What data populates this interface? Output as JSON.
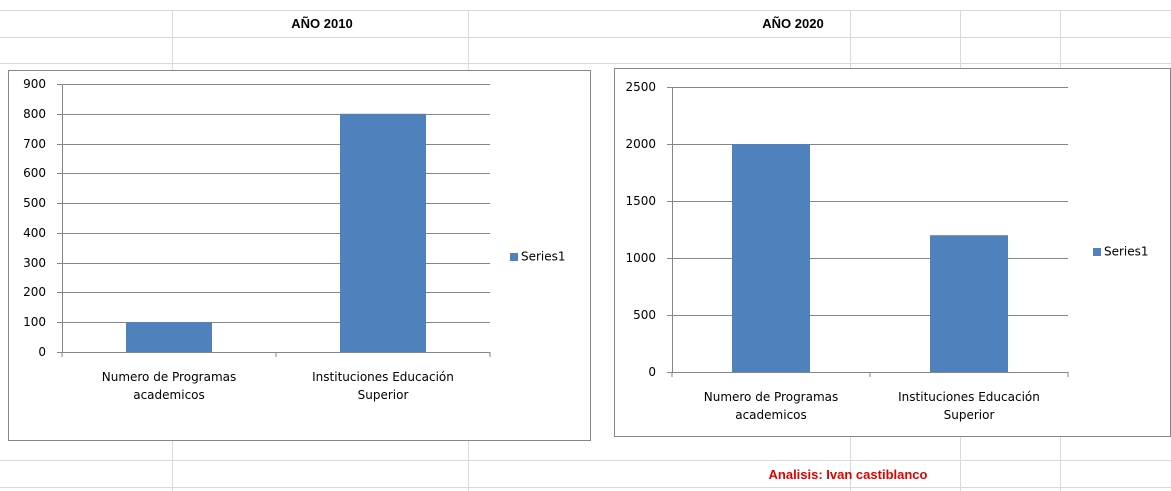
{
  "headers": [
    "AÑO 2010",
    "AÑO 2020"
  ],
  "footer": "Analisis: Ivan castiblanco",
  "chart_data": [
    {
      "type": "bar",
      "categories": [
        "Numero de Programas academicos",
        "Instituciones Educación Superior"
      ],
      "series": [
        {
          "name": "Series1",
          "color": "#4f81bd",
          "values": [
            100,
            800
          ]
        }
      ],
      "ylim": [
        0,
        900
      ],
      "yticks": [
        0,
        100,
        200,
        300,
        400,
        500,
        600,
        700,
        800,
        900
      ],
      "grid": true,
      "legend": "right"
    },
    {
      "type": "bar",
      "categories": [
        "Numero de Programas academicos",
        "Instituciones Educación Superior"
      ],
      "series": [
        {
          "name": "Series1",
          "color": "#4f81bd",
          "values": [
            2000,
            1200
          ]
        }
      ],
      "ylim": [
        0,
        2500
      ],
      "yticks": [
        0,
        500,
        1000,
        1500,
        2000,
        2500
      ],
      "grid": true,
      "legend": "right"
    }
  ]
}
